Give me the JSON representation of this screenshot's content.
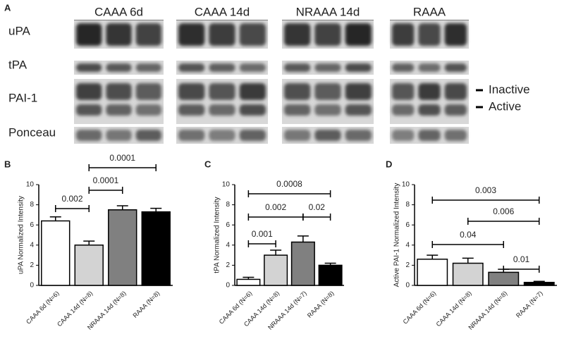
{
  "blot": {
    "panel": "A",
    "groups": [
      "CAAA 6d",
      "CAAA 14d",
      "NRAAA 14d",
      "RAAA"
    ],
    "rows": [
      "uPA",
      "tPA",
      "PAI-1",
      "Ponceau"
    ],
    "band_labels": [
      "Inactive",
      "Active"
    ]
  },
  "chart_data": [
    {
      "type": "bar",
      "panel": "B",
      "ylabel": "uPA Normalized Intensity",
      "categories": [
        "CAAA 6d (N=6)",
        "CAAA 14d (N=8)",
        "NRAAA 14d (N=8)",
        "RAAA (N=8)"
      ],
      "values": [
        6.4,
        4.0,
        7.5,
        7.3
      ],
      "errors": [
        0.4,
        0.4,
        0.4,
        0.35
      ],
      "colors": [
        "#ffffff",
        "#d3d3d3",
        "#808080",
        "#000000"
      ],
      "ylim": [
        0,
        10
      ],
      "yticks": [
        0,
        2,
        4,
        6,
        8,
        10
      ],
      "comparisons": [
        {
          "groups": [
            0,
            1
          ],
          "label": "0.002"
        },
        {
          "groups": [
            1,
            2
          ],
          "label": "0.0001"
        },
        {
          "groups": [
            1,
            3
          ],
          "label": "0.0001"
        }
      ]
    },
    {
      "type": "bar",
      "panel": "C",
      "ylabel": "tPA Normalized Intensity",
      "categories": [
        "CAAA 6d (N=6)",
        "CAAA 14d (N=8)",
        "NRAAA 14d (N=7)",
        "RAAA (N=8)"
      ],
      "values": [
        0.6,
        3.0,
        4.3,
        2.0
      ],
      "errors": [
        0.2,
        0.5,
        0.6,
        0.2
      ],
      "colors": [
        "#ffffff",
        "#d3d3d3",
        "#808080",
        "#000000"
      ],
      "ylim": [
        0,
        10
      ],
      "yticks": [
        0,
        2,
        4,
        6,
        8,
        10
      ],
      "comparisons": [
        {
          "groups": [
            0,
            1
          ],
          "label": "0.001"
        },
        {
          "groups": [
            0,
            2
          ],
          "label": "0.002"
        },
        {
          "groups": [
            2,
            3
          ],
          "label": "0.02"
        },
        {
          "groups": [
            0,
            3
          ],
          "label": "0.0008"
        }
      ]
    },
    {
      "type": "bar",
      "panel": "D",
      "ylabel": "Active PAI-1 Normalized Intensity",
      "categories": [
        "CAAA 6d (N=6)",
        "CAAA 14d (N=8)",
        "NRAAA 14d (N=8)",
        "RAAA (N=7)"
      ],
      "values": [
        2.6,
        2.2,
        1.3,
        0.3
      ],
      "errors": [
        0.4,
        0.5,
        0.3,
        0.1
      ],
      "colors": [
        "#ffffff",
        "#d3d3d3",
        "#808080",
        "#000000"
      ],
      "ylim": [
        0,
        10
      ],
      "yticks": [
        0,
        2,
        4,
        6,
        8,
        10
      ],
      "comparisons": [
        {
          "groups": [
            0,
            2
          ],
          "label": "0.04"
        },
        {
          "groups": [
            2,
            3
          ],
          "label": "0.01"
        },
        {
          "groups": [
            1,
            3
          ],
          "label": "0.006"
        },
        {
          "groups": [
            0,
            3
          ],
          "label": "0.003"
        }
      ]
    }
  ]
}
